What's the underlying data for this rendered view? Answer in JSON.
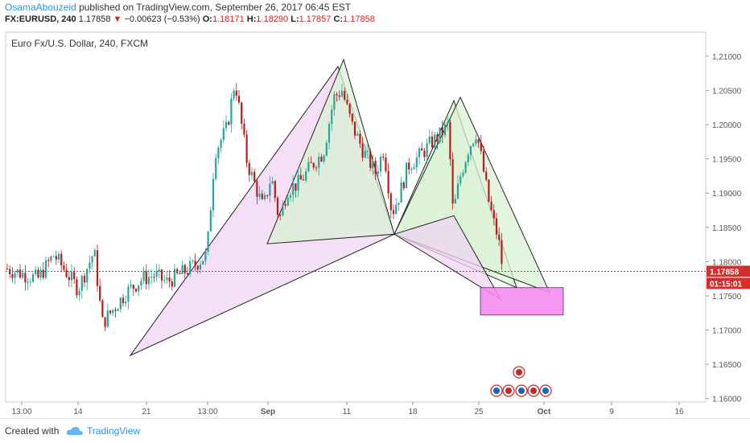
{
  "header": {
    "author": "OsamaAbouzeid",
    "published_text": "published on TradingView.com, September 26, 2017 06:45 EST",
    "symbol": "FX:EURUSD, 240",
    "last": "1.17858",
    "change_arrow": "▼",
    "change": "−0.00623 (−0.53%)",
    "o_label": "O:",
    "o_value": "1.18171",
    "h_label": "H:",
    "h_value": "1.18290",
    "l_label": "L:",
    "l_value": "1.17857",
    "c_label": "C:",
    "c_value": "1.17858"
  },
  "footer": {
    "created_with": "Created with",
    "brand": "TradingView"
  },
  "chart_data": {
    "type": "candlestick",
    "title": "Euro Fx/U.S. Dollar, 240, FXCM",
    "x_tick_labels": [
      "13:00",
      "14",
      "21",
      "13:00",
      "Sep",
      "11",
      "18",
      "25",
      "Oct",
      "9",
      "16"
    ],
    "y_tick_labels": [
      "1.21000",
      "1.20500",
      "1.20000",
      "1.19500",
      "1.19000",
      "1.18500",
      "1.18000",
      "1.17500",
      "1.17000",
      "1.16500",
      "1.16000"
    ],
    "ylim": [
      1.1595,
      1.2135
    ],
    "price_line": 1.17858,
    "price_label": "1.17858",
    "countdown_label": "01:15:01",
    "colors": {
      "up": "#26a69a",
      "down": "#b71c1c",
      "price": "#d32f2f",
      "pattern_purple": "#f0d4f4",
      "pattern_green": "#d9f2d4",
      "target_zone": "#f48cf0",
      "event_marker": "#c62828"
    },
    "candle_anchors": [
      [
        0,
        1.179
      ],
      [
        40,
        1.1775
      ],
      [
        60,
        1.181
      ],
      [
        90,
        1.176
      ],
      [
        110,
        1.1815
      ],
      [
        120,
        1.171
      ],
      [
        150,
        1.1755
      ],
      [
        170,
        1.1775
      ],
      [
        185,
        1.178
      ],
      [
        200,
        1.177
      ],
      [
        215,
        1.178
      ],
      [
        235,
        1.1795
      ],
      [
        250,
        1.181
      ],
      [
        260,
        1.196
      ],
      [
        275,
        1.1995
      ],
      [
        285,
        1.2065
      ],
      [
        300,
        1.1945
      ],
      [
        312,
        1.1905
      ],
      [
        320,
        1.1878
      ],
      [
        330,
        1.1925
      ],
      [
        340,
        1.186
      ],
      [
        350,
        1.1905
      ],
      [
        365,
        1.1915
      ],
      [
        380,
        1.194
      ],
      [
        395,
        1.196
      ],
      [
        408,
        1.204
      ],
      [
        418,
        1.205
      ],
      [
        430,
        1.2
      ],
      [
        445,
        1.196
      ],
      [
        460,
        1.193
      ],
      [
        470,
        1.1965
      ],
      [
        480,
        1.187
      ],
      [
        490,
        1.19
      ],
      [
        500,
        1.194
      ],
      [
        515,
        1.1955
      ],
      [
        530,
        1.1975
      ],
      [
        540,
        1.1985
      ],
      [
        550,
        1.2
      ],
      [
        556,
        1.187
      ],
      [
        565,
        1.1925
      ],
      [
        575,
        1.1965
      ],
      [
        585,
        1.199
      ],
      [
        592,
        1.1945
      ],
      [
        600,
        1.189
      ],
      [
        607,
        1.1855
      ],
      [
        612,
        1.1835
      ],
      [
        618,
        1.1786
      ]
    ],
    "patterns": [
      {
        "name": "purple-large",
        "fill": "#f0d4f4",
        "points": [
          [
            155,
            1.1663
          ],
          [
            413,
            1.2085
          ],
          [
            483,
            1.184
          ]
        ]
      },
      {
        "name": "green-large",
        "fill": "#d9f2d4",
        "points": [
          [
            325,
            1.1826
          ],
          [
            420,
            1.2095
          ],
          [
            483,
            1.184
          ]
        ]
      },
      {
        "name": "green-right",
        "fill": "#d9f2d4",
        "points": [
          [
            483,
            1.184
          ],
          [
            557,
            1.2035
          ],
          [
            635,
            1.1762
          ]
        ]
      },
      {
        "name": "green-right-2",
        "fill": "#d9f2d4",
        "points": [
          [
            483,
            1.184
          ],
          [
            565,
            1.204
          ],
          [
            676,
            1.1755
          ]
        ]
      },
      {
        "name": "purple-right",
        "fill": "#f0d4f4",
        "points": [
          [
            483,
            1.184
          ],
          [
            557,
            1.1867
          ],
          [
            615,
            1.1745
          ]
        ]
      }
    ],
    "target_zone": {
      "x0": 590,
      "x1": 693,
      "y_top": 1.1762,
      "y_bottom": 1.1722
    }
  }
}
